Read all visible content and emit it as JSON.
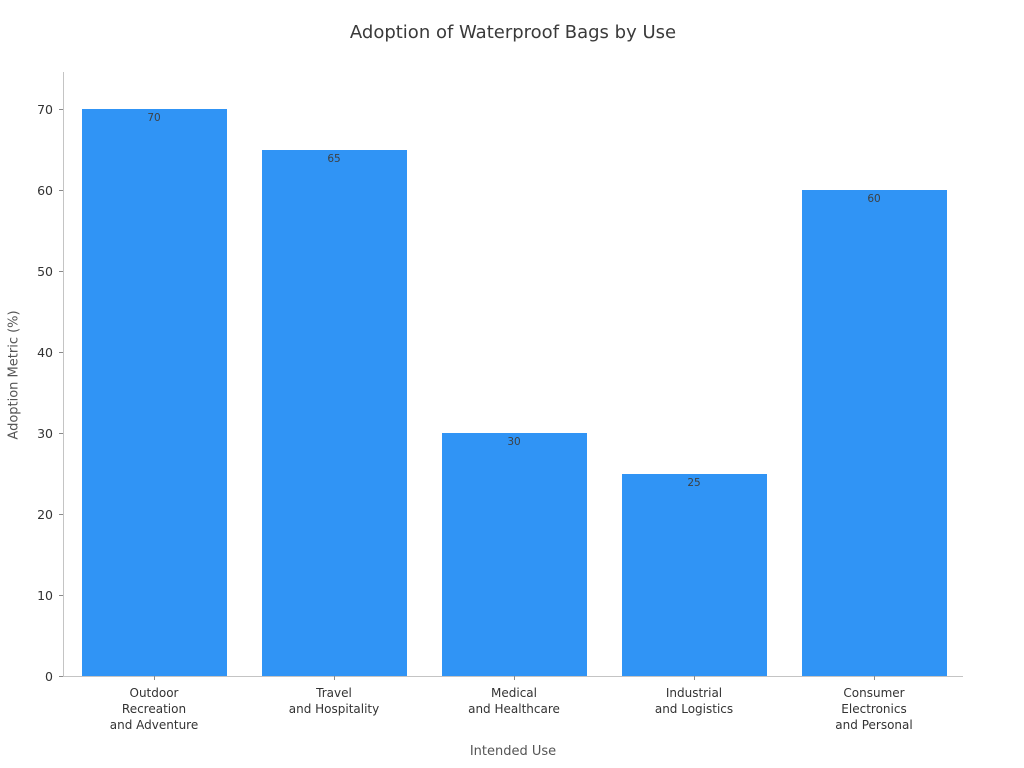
{
  "chart_data": {
    "type": "bar",
    "title": "Adoption of Waterproof Bags by Use",
    "xlabel": "Intended Use",
    "ylabel": "Adoption Metric (%)",
    "categories": [
      "Outdoor\nRecreation\nand Adventure",
      "Travel\nand Hospitality",
      "Medical\nand Healthcare",
      "Industrial\nand Logistics",
      "Consumer\nElectronics\nand Personal"
    ],
    "values": [
      70,
      65,
      30,
      25,
      60
    ],
    "bar_labels": [
      "70",
      "65",
      "30",
      "25",
      "60"
    ],
    "yticks": [
      0,
      10,
      20,
      30,
      40,
      50,
      60,
      70
    ],
    "ylim": [
      0,
      74.7
    ],
    "bar_color": "#3094F5",
    "grid": false,
    "legend": null
  }
}
